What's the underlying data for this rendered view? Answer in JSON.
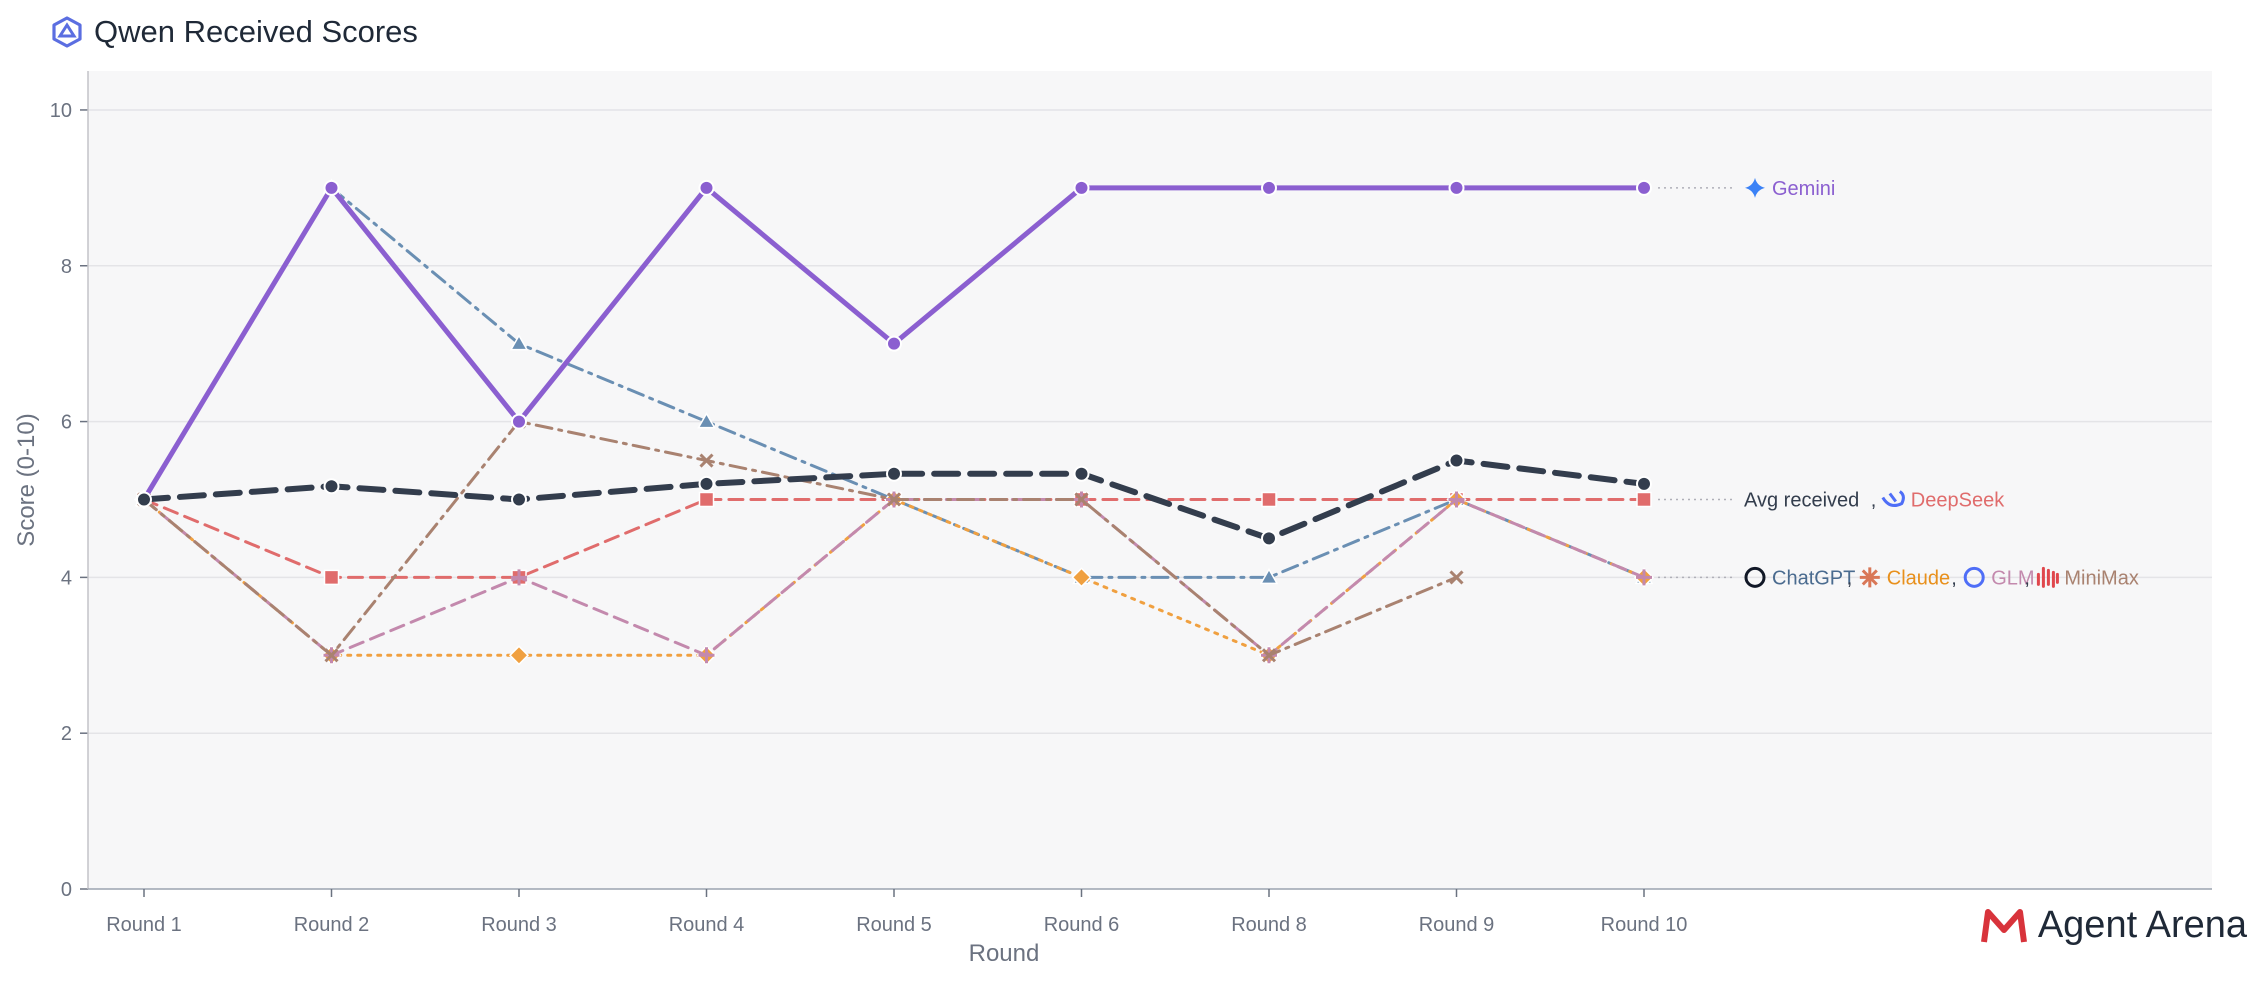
{
  "title": "Qwen Received Scores",
  "brand": "Agent Arena",
  "chart_data": {
    "type": "line",
    "categories": [
      "Round 1",
      "Round 2",
      "Round 3",
      "Round 4",
      "Round 5",
      "Round 6",
      "Round 8",
      "Round 9",
      "Round 10"
    ],
    "xlabel": "Round",
    "ylabel": "Score (0-10)",
    "ylim": [
      0,
      10.5
    ],
    "yticks": [
      0,
      2,
      4,
      6,
      8,
      10
    ],
    "grid": true,
    "series": [
      {
        "name": "DeepSeek",
        "color": "#e06c6c",
        "dash": "dashed",
        "marker": "square",
        "values": [
          5,
          4,
          4,
          5,
          5,
          5,
          5,
          5,
          5
        ]
      },
      {
        "name": "ChatGPT",
        "color": "#6a8fb3",
        "dash": "dashdot",
        "marker": "triangle",
        "values": [
          5,
          9,
          7,
          6,
          5,
          4,
          4,
          5,
          4
        ]
      },
      {
        "name": "Claude",
        "color": "#f0a040",
        "dash": "dotted",
        "marker": "diamond",
        "values": [
          5,
          3,
          3,
          3,
          5,
          4,
          3,
          5,
          4
        ]
      },
      {
        "name": "GLM",
        "color": "#c389ad",
        "dash": "dashed",
        "marker": "plus",
        "values": [
          5,
          3,
          4,
          3,
          5,
          5,
          3,
          5,
          4
        ]
      },
      {
        "name": "MiniMax",
        "color": "#a98270",
        "dash": "dashdot",
        "marker": "x",
        "values": [
          5,
          3,
          6,
          5.5,
          5,
          5,
          3,
          4,
          null
        ]
      },
      {
        "name": "Gemini",
        "color": "#8b5fd0",
        "dash": "solid",
        "marker": "circle",
        "width": 5,
        "values": [
          5,
          9,
          6,
          9,
          7,
          9,
          9,
          9,
          9
        ]
      },
      {
        "name": "Avg received",
        "color": "#333d4d",
        "dash": "bigdash",
        "marker": "circle",
        "width": 6,
        "values": [
          5,
          5.17,
          5,
          5.2,
          5.33,
          5.33,
          4.5,
          5.5,
          5.2
        ]
      }
    ],
    "end_labels": [
      {
        "value": 9,
        "items": [
          {
            "name": "Gemini",
            "color": "#8b5fd0",
            "icon": "gemini-icon"
          }
        ]
      },
      {
        "value": 5,
        "items": [
          {
            "name": "Avg received",
            "color": "#333d4d",
            "icon": ""
          },
          {
            "name": "DeepSeek",
            "color": "#e06c6c",
            "icon": "deepseek-icon"
          }
        ]
      },
      {
        "value": 4,
        "items": [
          {
            "name": "ChatGPT",
            "color": "#4a6b8f",
            "icon": "chatgpt-icon"
          },
          {
            "name": "Claude",
            "color": "#e8901c",
            "icon": "claude-icon"
          },
          {
            "name": "GLM",
            "color": "#c389ad",
            "icon": "glm-icon"
          },
          {
            "name": "MiniMax",
            "color": "#a98270",
            "icon": "minimax-icon"
          }
        ]
      }
    ]
  }
}
